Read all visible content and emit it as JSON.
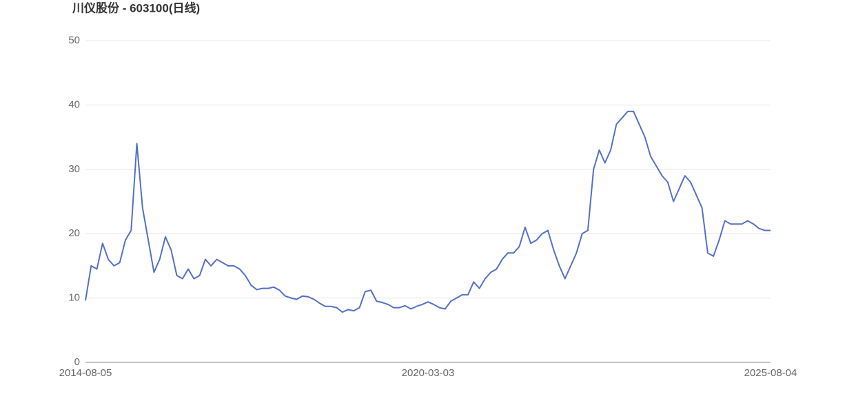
{
  "chart_data": {
    "type": "line",
    "title": "川仪股份 - 603100(日线)",
    "categories": [
      "2014-08-05",
      null,
      null,
      null,
      null,
      null,
      null,
      null,
      null,
      null,
      null,
      null,
      null,
      null,
      null,
      null,
      null,
      null,
      null,
      null,
      null,
      null,
      null,
      null,
      null,
      null,
      null,
      null,
      null,
      null,
      null,
      null,
      null,
      null,
      null,
      null,
      null,
      null,
      null,
      null,
      null,
      null,
      null,
      null,
      null,
      null,
      null,
      null,
      null,
      null,
      null,
      null,
      null,
      null,
      null,
      null,
      null,
      null,
      null,
      null,
      "2020-03-03",
      null,
      null,
      null,
      null,
      null,
      null,
      null,
      null,
      null,
      null,
      null,
      null,
      null,
      null,
      null,
      null,
      null,
      null,
      null,
      null,
      null,
      null,
      null,
      null,
      null,
      null,
      null,
      null,
      null,
      null,
      null,
      null,
      null,
      null,
      null,
      null,
      null,
      null,
      null,
      null,
      null,
      null,
      null,
      null,
      null,
      null,
      null,
      null,
      null,
      null,
      null,
      null,
      null,
      null,
      null,
      null,
      null,
      null,
      null,
      "2025-08-04"
    ],
    "series": [
      {
        "name": "603100",
        "color": "#5470c6",
        "values": [
          9.6,
          15,
          14.5,
          18.5,
          16,
          15,
          15.5,
          19,
          20.5,
          34,
          24,
          19,
          14,
          16,
          19.5,
          17.5,
          13.5,
          13,
          14.5,
          13,
          13.5,
          16,
          15,
          16,
          15.5,
          15,
          15,
          14.5,
          13.5,
          12,
          11.3,
          11.5,
          11.5,
          11.7,
          11.2,
          10.3,
          10,
          9.8,
          10.3,
          10.2,
          9.8,
          9.2,
          8.7,
          8.7,
          8.5,
          7.8,
          8.2,
          8,
          8.5,
          11,
          11.2,
          9.5,
          9.3,
          9,
          8.5,
          8.5,
          8.8,
          8.3,
          8.7,
          9,
          9.4,
          9,
          8.5,
          8.3,
          9.5,
          10,
          10.5,
          10.5,
          12.5,
          11.5,
          13,
          14,
          14.5,
          16,
          17,
          17,
          18,
          21,
          18.5,
          19,
          20,
          20.5,
          17.5,
          15,
          13,
          15,
          17,
          20,
          20.5,
          30,
          33,
          31,
          33,
          37,
          38,
          39,
          39,
          37,
          35,
          32,
          30.5,
          29,
          28,
          25,
          27,
          29,
          28,
          26,
          24,
          17,
          16.5,
          19,
          22,
          21.5,
          21.5,
          21.5,
          22,
          21.5,
          20.8,
          20.5,
          20.5
        ]
      }
    ],
    "ylim": [
      0,
      50
    ],
    "yticks": [
      0,
      10,
      20,
      30,
      40,
      50
    ],
    "grid": true
  }
}
